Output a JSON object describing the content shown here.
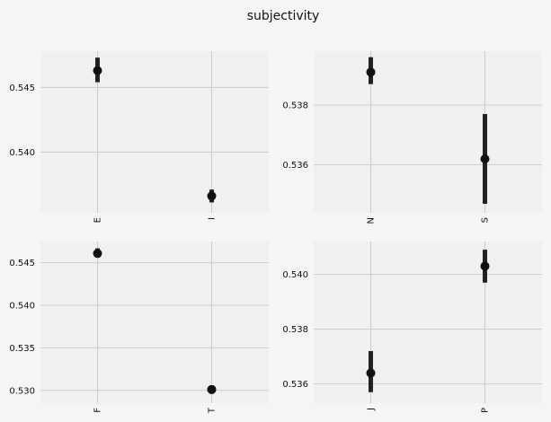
{
  "title": "subjectivity",
  "colors": {
    "figure_bg": "#f5f5f5",
    "axes_bg": "#f0f0f0",
    "grid": "#cbcbcb",
    "marker": "#111111",
    "errorbar": "#222222"
  },
  "chart_data": [
    {
      "type": "scatter",
      "subtype": "point-with-errorbar",
      "categories": [
        "E",
        "I"
      ],
      "values": [
        0.5463,
        0.5366
      ],
      "error_low": [
        0.5454,
        0.5361
      ],
      "error_high": [
        0.5473,
        0.5371
      ],
      "yticks": [
        0.54,
        0.545
      ],
      "ytick_labels": [
        "0.540",
        "0.545"
      ],
      "ylim": [
        0.5353,
        0.5478
      ],
      "grid": true
    },
    {
      "type": "scatter",
      "subtype": "point-with-errorbar",
      "categories": [
        "N",
        "S"
      ],
      "values": [
        0.5391,
        0.5362
      ],
      "error_low": [
        0.5387,
        0.5347
      ],
      "error_high": [
        0.5396,
        0.5377
      ],
      "yticks": [
        0.536,
        0.538
      ],
      "ytick_labels": [
        "0.536",
        "0.538"
      ],
      "ylim": [
        0.5344,
        0.5398
      ],
      "grid": true
    },
    {
      "type": "scatter",
      "subtype": "point-with-errorbar",
      "categories": [
        "F",
        "T"
      ],
      "values": [
        0.5461,
        0.5301
      ],
      "error_low": [
        0.5456,
        0.5296
      ],
      "error_high": [
        0.5467,
        0.5306
      ],
      "yticks": [
        0.53,
        0.535,
        0.54,
        0.545
      ],
      "ytick_labels": [
        "0.530",
        "0.535",
        "0.540",
        "0.545"
      ],
      "ylim": [
        0.5285,
        0.5475
      ],
      "grid": true
    },
    {
      "type": "scatter",
      "subtype": "point-with-errorbar",
      "categories": [
        "J",
        "P"
      ],
      "values": [
        0.5364,
        0.5403
      ],
      "error_low": [
        0.5357,
        0.5397
      ],
      "error_high": [
        0.5372,
        0.5409
      ],
      "yticks": [
        0.536,
        0.538,
        0.54
      ],
      "ytick_labels": [
        "0.536",
        "0.538",
        "0.540"
      ],
      "ylim": [
        0.5353,
        0.5412
      ],
      "grid": true
    }
  ]
}
